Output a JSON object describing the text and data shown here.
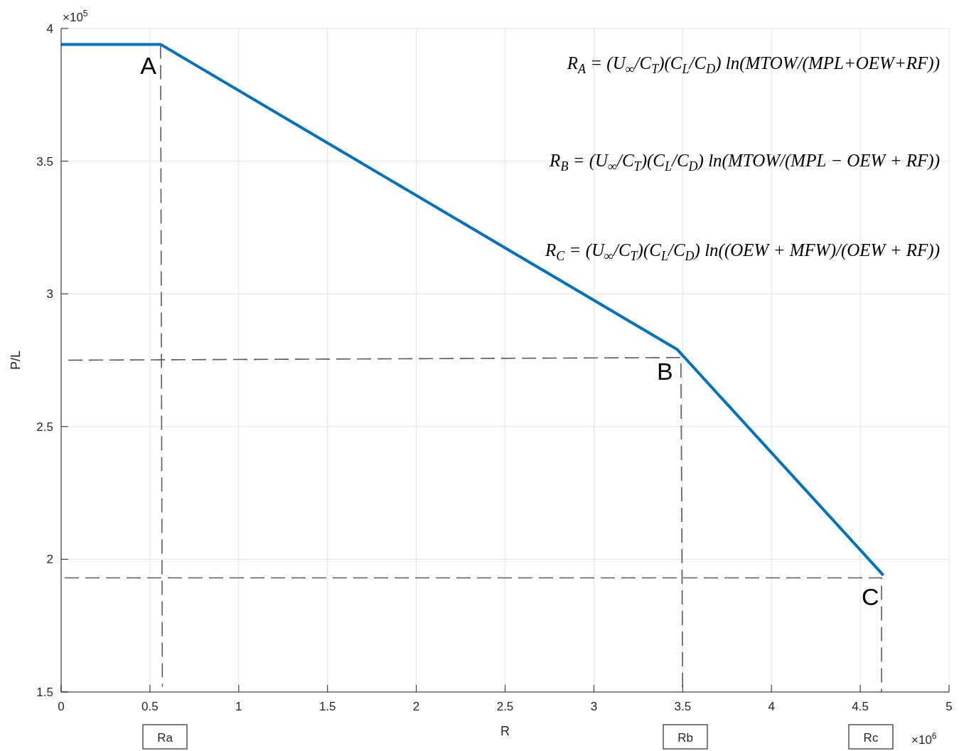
{
  "chart_data": {
    "type": "line",
    "xlabel": "R",
    "ylabel": "P/L",
    "xlim": [
      0,
      5
    ],
    "xticks": [
      0,
      0.5,
      1,
      1.5,
      2,
      2.5,
      3,
      3.5,
      4,
      4.5,
      5
    ],
    "ylim": [
      1.5,
      4
    ],
    "yticks": [
      1.5,
      2,
      2.5,
      3,
      3.5,
      4
    ],
    "grid": true,
    "series": [
      {
        "color": "#0072bd",
        "x": [
          0,
          0.56,
          3.47,
          4.63
        ],
        "values": [
          3.94,
          3.94,
          2.79,
          1.94
        ]
      },
      {
        "color": "#5a5a5a",
        "line_style": "dashed",
        "x": [
          0.56,
          0.57
        ],
        "values": [
          3.94,
          1.52
        ]
      },
      {
        "color": "#5a5a5a",
        "line_style": "dashed",
        "x": [
          0.04,
          3.49,
          3.5
        ],
        "values": [
          2.75,
          2.76,
          1.5
        ]
      },
      {
        "color": "#5a5a5a",
        "line_style": "dashed",
        "x": [
          0.02,
          4.62,
          4.62
        ],
        "values": [
          1.93,
          1.93,
          1.5
        ]
      }
    ],
    "annotations": [
      "×10$^{5}$",
      "×10$^{6}$",
      "R$_{A}$ = (U$_{∞}$/C$_{T}$)(C$_{L}$/C$_{D}$) ln(MTOW/(MPL+OEW+RF))",
      "R$_{B}$ = (U$_{∞}$/C$_{T}$)(C$_{L}$/C$_{D}$) ln(MTOW/(MPL − OEW + RF))",
      "R$_{C}$ = (U$_{∞}$/C$_{T}$)(C$_{L}$/C$_{D}$) ln((OEW + MFW)/(OEW + RF))",
      "Ra",
      "Rb",
      "Rc",
      {
        "text": "A",
        "x": 0.56,
        "y": 3.94
      },
      {
        "text": "B",
        "x": 3.47,
        "y": 2.79
      },
      {
        "text": "C",
        "x": 4.63,
        "y": 1.94
      }
    ]
  }
}
